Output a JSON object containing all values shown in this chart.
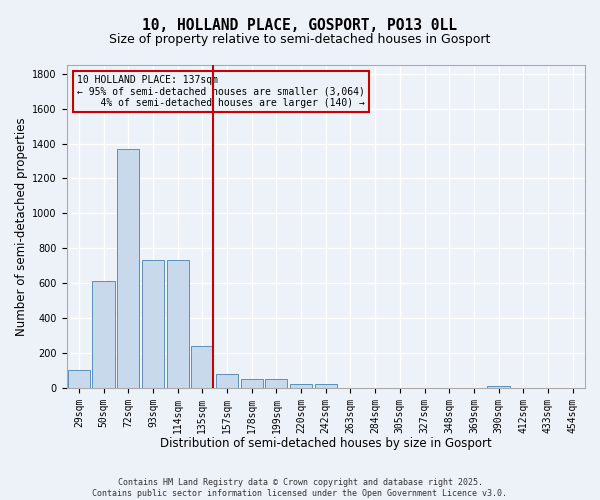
{
  "title_line1": "10, HOLLAND PLACE, GOSPORT, PO13 0LL",
  "title_line2": "Size of property relative to semi-detached houses in Gosport",
  "xlabel": "Distribution of semi-detached houses by size in Gosport",
  "ylabel": "Number of semi-detached properties",
  "categories": [
    "29sqm",
    "50sqm",
    "72sqm",
    "93sqm",
    "114sqm",
    "135sqm",
    "157sqm",
    "178sqm",
    "199sqm",
    "220sqm",
    "242sqm",
    "263sqm",
    "284sqm",
    "305sqm",
    "327sqm",
    "348sqm",
    "369sqm",
    "390sqm",
    "412sqm",
    "433sqm",
    "454sqm"
  ],
  "values": [
    100,
    610,
    1370,
    730,
    730,
    240,
    80,
    50,
    50,
    20,
    20,
    0,
    0,
    0,
    0,
    0,
    0,
    10,
    0,
    0,
    0
  ],
  "bar_color": "#c8d9ec",
  "bar_edge_color": "#5a8fc0",
  "vline_x_index": 5,
  "vline_color": "#cc0000",
  "annotation_line1": "10 HOLLAND PLACE: 137sqm",
  "annotation_line2": "← 95% of semi-detached houses are smaller (3,064)",
  "annotation_line3": "    4% of semi-detached houses are larger (140) →",
  "annotation_box_color": "#cc0000",
  "ylim": [
    0,
    1850
  ],
  "yticks": [
    0,
    200,
    400,
    600,
    800,
    1000,
    1200,
    1400,
    1600,
    1800
  ],
  "footnote": "Contains HM Land Registry data © Crown copyright and database right 2025.\nContains public sector information licensed under the Open Government Licence v3.0.",
  "bg_color": "#edf2f9",
  "grid_color": "#ffffff",
  "title_fontsize": 10.5,
  "subtitle_fontsize": 9,
  "tick_fontsize": 7,
  "label_fontsize": 8.5,
  "footnote_fontsize": 6
}
